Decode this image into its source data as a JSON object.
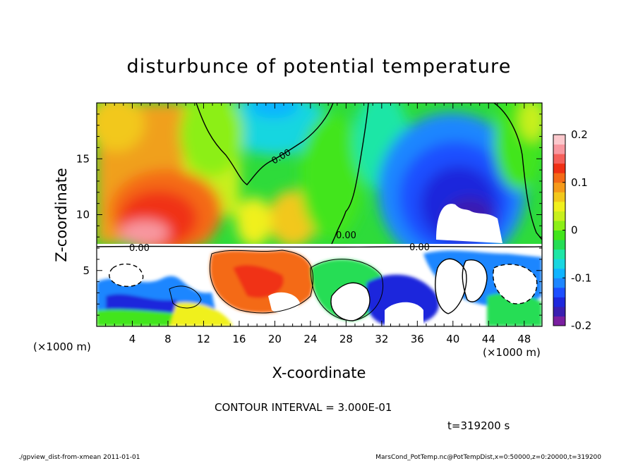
{
  "chart_data": {
    "type": "heatmap",
    "title": "disturbunce of potential temperature",
    "xlabel": "X-coordinate",
    "ylabel": "Z-coordinate",
    "x_unit_left": "(×1000 m)",
    "x_unit_right": "(×1000 m)",
    "xlim": [
      0,
      50
    ],
    "ylim": [
      0,
      20
    ],
    "x_ticks": [
      4,
      8,
      12,
      16,
      20,
      24,
      28,
      32,
      36,
      40,
      44,
      48
    ],
    "y_ticks": [
      5,
      10,
      15
    ],
    "colorbar": {
      "range": [
        -0.2,
        0.2
      ],
      "ticks": [
        {
          "value": 0.2,
          "label": "0.2"
        },
        {
          "value": 0.1,
          "label": "0.1"
        },
        {
          "value": 0,
          "label": "0"
        },
        {
          "value": -0.1,
          "label": "-0.1"
        },
        {
          "value": -0.2,
          "label": "-0.2"
        }
      ],
      "colors": [
        "#7a1fa0",
        "#3a1fb0",
        "#1e28dc",
        "#1d4fff",
        "#1e86ff",
        "#10b4ff",
        "#19d6e0",
        "#1ee6a6",
        "#25dd55",
        "#42e51b",
        "#8cef16",
        "#c8f01d",
        "#f0f01e",
        "#f2c81c",
        "#f59a1a",
        "#f46a17",
        "#f03014",
        "#f5605a",
        "#f898a0",
        "#fbc8cc"
      ]
    },
    "contour_labels": [
      "0.00",
      "0.00",
      "0.00",
      "0.00"
    ],
    "annotations": {
      "contour_interval": "CONTOUR INTERVAL = 3.000E-01",
      "time": "t=319200 s"
    },
    "grid": false
  },
  "footer": {
    "left": "./gpview_dist-from-xmean   2011-01-01",
    "right": "MarsCond_PotTemp.nc@PotTempDist,x=0:50000,z=0:20000,t=319200"
  }
}
